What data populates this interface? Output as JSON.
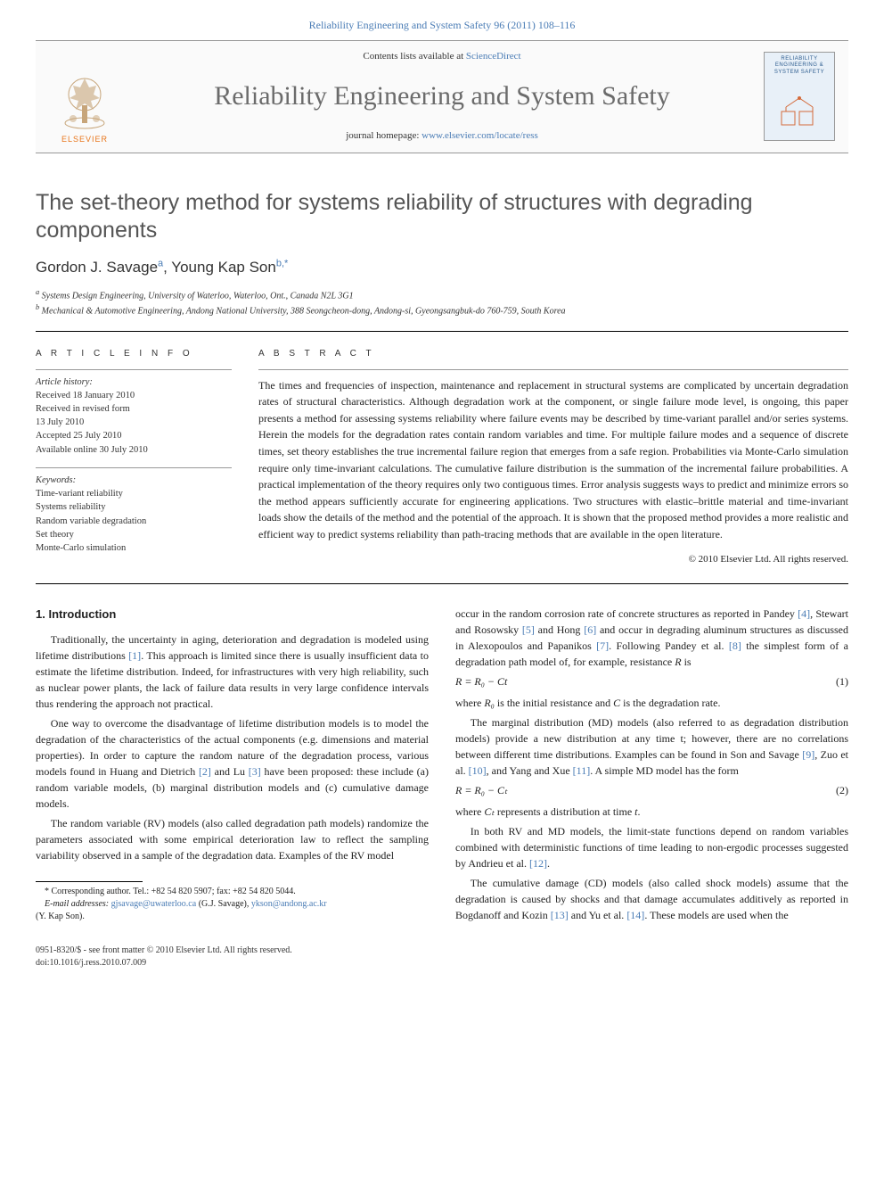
{
  "top_link": {
    "journal": "Reliability Engineering and System Safety",
    "vol_pages": "96 (2011) 108–116"
  },
  "masthead": {
    "contents_prefix": "Contents lists available at ",
    "contents_link": "ScienceDirect",
    "journal_title": "Reliability Engineering and System Safety",
    "homepage_prefix": "journal homepage: ",
    "homepage_url": "www.elsevier.com/locate/ress",
    "elsevier_label": "ELSEVIER",
    "cover_title": "RELIABILITY ENGINEERING & SYSTEM SAFETY"
  },
  "paper": {
    "title": "The set-theory method for systems reliability of structures with degrading components",
    "authors_html": [
      "Gordon J. Savage",
      "Young Kap Son"
    ],
    "author_markers": [
      "a",
      "b,*"
    ],
    "affiliations": [
      "Systems Design Engineering, University of Waterloo, Waterloo, Ont., Canada N2L 3G1",
      "Mechanical & Automotive Engineering, Andong National University, 388 Seongcheon-dong, Andong-si, Gyeongsangbuk-do 760-759, South Korea"
    ],
    "aff_labels": [
      "a",
      "b"
    ]
  },
  "article_info": {
    "label": "A R T I C L E   I N F O",
    "history_label": "Article history:",
    "history": [
      "Received 18 January 2010",
      "Received in revised form",
      "13 July 2010",
      "Accepted 25 July 2010",
      "Available online 30 July 2010"
    ],
    "keywords_label": "Keywords:",
    "keywords": [
      "Time-variant reliability",
      "Systems reliability",
      "Random variable degradation",
      "Set theory",
      "Monte-Carlo simulation"
    ]
  },
  "abstract": {
    "label": "A B S T R A C T",
    "text": "The times and frequencies of inspection, maintenance and replacement in structural systems are complicated by uncertain degradation rates of structural characteristics. Although degradation work at the component, or single failure mode level, is ongoing, this paper presents a method for assessing systems reliability where failure events may be described by time-variant parallel and/or series systems. Herein the models for the degradation rates contain random variables and time. For multiple failure modes and a sequence of discrete times, set theory establishes the true incremental failure region that emerges from a safe region. Probabilities via Monte-Carlo simulation require only time-invariant calculations. The cumulative failure distribution is the summation of the incremental failure probabilities. A practical implementation of the theory requires only two contiguous times. Error analysis suggests ways to predict and minimize errors so the method appears sufficiently accurate for engineering applications. Two structures with elastic–brittle material and time-invariant loads show the details of the method and the potential of the approach. It is shown that the proposed method provides a more realistic and efficient way to predict systems reliability than path-tracing methods that are available in the open literature.",
    "copyright": "© 2010 Elsevier Ltd. All rights reserved."
  },
  "body": {
    "section_title": "1.  Introduction",
    "p1": "Traditionally, the uncertainty in aging, deterioration and degradation is modeled using lifetime distributions [1]. This approach is limited since there is usually insufficient data to estimate the lifetime distribution. Indeed, for infrastructures with very high reliability, such as nuclear power plants, the lack of failure data results in very large confidence intervals thus rendering the approach not practical.",
    "p2": "One way to overcome the disadvantage of lifetime distribution models is to model the degradation of the characteristics of the actual components (e.g. dimensions and material properties). In order to capture the random nature of the degradation process, various models found in Huang and Dietrich [2] and Lu [3] have been proposed: these include (a) random variable models, (b) marginal distribution models and (c) cumulative damage models.",
    "p3": "The random variable (RV) models (also called degradation path models) randomize the parameters associated with some empirical deterioration law to reflect the sampling variability observed in a sample of the degradation data. Examples of the RV model",
    "p4a": "occur in the random corrosion rate of concrete structures as reported in Pandey [4], Stewart and Rosowsky [5] and Hong [6] and occur in degrading aluminum structures as discussed in Alexopoulos and Papanikos [7]. Following Pandey et al. [8] the simplest form of a degradation path model of, for example, resistance ",
    "p4b": " is",
    "resistance_var": "R",
    "eq1": "R = R₀ − Ct",
    "eq1num": "(1)",
    "p5a": "where ",
    "p5b": " is the initial resistance and ",
    "p5c": " is the degradation rate.",
    "R0": "R₀",
    "Cvar": "C",
    "p6": "The marginal distribution (MD) models (also referred to as degradation distribution models) provide a new distribution at any time t; however, there are no correlations between different time distributions. Examples can be found in Son and Savage [9], Zuo et al. [10], and Yang and Xue [11]. A simple MD model has the form",
    "eq2": "R = R₀ − Cₜ",
    "eq2num": "(2)",
    "p7a": "where ",
    "Ct": "Cₜ",
    "p7b": " represents a distribution at time ",
    "tvar": "t",
    "p7c": ".",
    "p8": "In both RV and MD models, the limit-state functions depend on random variables combined with deterministic functions of time leading to non-ergodic processes suggested by Andrieu et al. [12].",
    "p9": "The cumulative damage (CD) models (also called shock models) assume that the degradation is caused by shocks and that damage accumulates additively as reported in Bogdanoff and Kozin [13] and Yu et al. [14]. These models are used when the"
  },
  "footnotes": {
    "corr": "* Corresponding author. Tel.: +82 54 820 5907; fax: +82 54 820 5044.",
    "email_label": "E-mail addresses:",
    "email1": "gjsavage@uwaterloo.ca",
    "email1_name": "(G.J. Savage),",
    "email2": "ykson@andong.ac.kr",
    "email2_name": "(Y. Kap Son)."
  },
  "footer": {
    "issn_line": "0951-8320/$ - see front matter © 2010 Elsevier Ltd. All rights reserved.",
    "doi_line": "doi:10.1016/j.ress.2010.07.009"
  },
  "colors": {
    "link": "#4a7cb5",
    "title_gray": "#555555",
    "elsevier_orange": "#e8751a",
    "cover_bg": "#e8f0f8",
    "cover_text": "#2b5b8e"
  }
}
